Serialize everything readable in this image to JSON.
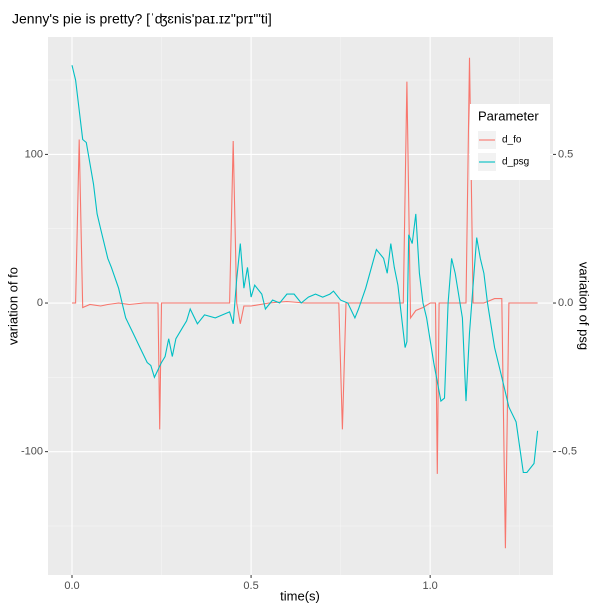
{
  "chart_data": {
    "type": "line",
    "title": "Jenny's pie is pretty? [ˈʤɛnis'paɪ.ɪz\"prɪ'\"ti]",
    "xlabel": "time(s)",
    "ylabel": "variation of fo",
    "y2label": "variation of psg",
    "legend_title": "Parameter",
    "legend": "right-inside-top",
    "grid": true,
    "xlim": [
      -0.067,
      1.343
    ],
    "xticks": [
      {
        "value": 0,
        "label": "0.0"
      },
      0.5,
      {
        "value": 1,
        "label": "1.0"
      }
    ],
    "xminorticks": [
      0.25,
      0.75,
      1.25
    ],
    "ylim": [
      -183,
      179
    ],
    "yticks": [
      -100,
      0,
      100
    ],
    "yminorticks": [
      -150,
      -50,
      50,
      150
    ],
    "y2lim": [
      -0.915,
      0.895
    ],
    "y2ticks": [
      -0.5,
      {
        "value": 0,
        "label": "0.0"
      },
      0.5
    ],
    "series": [
      {
        "name": "d_fo",
        "color": "#f8766d",
        "x": [
          0,
          0.01,
          0.02,
          0.03,
          0.05,
          0.08,
          0.1,
          0.13,
          0.16,
          0.2,
          0.24,
          0.245,
          0.25,
          0.3,
          0.35,
          0.4,
          0.44,
          0.45,
          0.46,
          0.47,
          0.48,
          0.5,
          0.55,
          0.6,
          0.65,
          0.7,
          0.745,
          0.755,
          0.765,
          0.8,
          0.85,
          0.9,
          0.925,
          0.935,
          0.945,
          0.96,
          0.98,
          1.0,
          1.015,
          1.02,
          1.025,
          1.05,
          1.08,
          1.1,
          1.11,
          1.12,
          1.15,
          1.18,
          1.2,
          1.21,
          1.22,
          1.25,
          1.3
        ],
        "values": [
          0,
          0,
          110,
          -3,
          -1,
          -2,
          -1,
          0,
          -1,
          0,
          0,
          -85,
          0,
          0,
          0,
          0,
          0,
          109,
          0,
          -14,
          -2,
          -2,
          0,
          1,
          0,
          0,
          0,
          -85,
          0,
          0,
          0,
          0,
          0,
          149,
          -10,
          -5,
          -3,
          0,
          0,
          -115,
          0,
          0,
          0,
          0,
          165,
          0,
          0,
          3,
          3,
          -165,
          0,
          0,
          0
        ]
      },
      {
        "name": "d_psg",
        "color": "#00bfc4",
        "axis": "y2",
        "x": [
          0,
          0.01,
          0.03,
          0.04,
          0.06,
          0.07,
          0.08,
          0.1,
          0.11,
          0.13,
          0.14,
          0.15,
          0.17,
          0.19,
          0.21,
          0.22,
          0.23,
          0.25,
          0.26,
          0.27,
          0.28,
          0.29,
          0.31,
          0.32,
          0.33,
          0.35,
          0.37,
          0.4,
          0.42,
          0.44,
          0.45,
          0.46,
          0.47,
          0.48,
          0.49,
          0.5,
          0.51,
          0.53,
          0.54,
          0.56,
          0.58,
          0.6,
          0.62,
          0.64,
          0.66,
          0.68,
          0.7,
          0.72,
          0.73,
          0.75,
          0.77,
          0.79,
          0.8,
          0.82,
          0.85,
          0.87,
          0.88,
          0.89,
          0.9,
          0.91,
          0.93,
          0.935,
          0.94,
          0.95,
          0.96,
          0.97,
          0.98,
          0.99,
          1.01,
          1.03,
          1.04,
          1.05,
          1.06,
          1.07,
          1.09,
          1.1,
          1.11,
          1.13,
          1.14,
          1.15,
          1.16,
          1.18,
          1.2,
          1.22,
          1.24,
          1.26,
          1.27,
          1.29,
          1.3
        ],
        "values": [
          0.8,
          0.75,
          0.55,
          0.54,
          0.4,
          0.3,
          0.25,
          0.15,
          0.12,
          0.05,
          0.0,
          -0.05,
          -0.1,
          -0.15,
          -0.2,
          -0.21,
          -0.25,
          -0.2,
          -0.18,
          -0.12,
          -0.18,
          -0.12,
          -0.08,
          -0.06,
          -0.02,
          -0.07,
          -0.04,
          -0.05,
          -0.04,
          -0.03,
          -0.07,
          0.08,
          0.2,
          0.05,
          0.12,
          0.02,
          0.06,
          0.03,
          -0.02,
          0.01,
          0.0,
          0.03,
          0.03,
          0.0,
          0.02,
          0.03,
          0.02,
          0.03,
          0.04,
          0.01,
          0.0,
          -0.05,
          -0.02,
          0.05,
          0.18,
          0.15,
          0.1,
          0.2,
          0.12,
          0.06,
          -0.15,
          -0.13,
          0.23,
          0.2,
          0.3,
          0.1,
          0.0,
          -0.05,
          -0.2,
          -0.33,
          -0.32,
          0.0,
          0.15,
          0.1,
          -0.05,
          -0.33,
          -0.1,
          0.22,
          0.15,
          0.1,
          0.0,
          -0.15,
          -0.25,
          -0.35,
          -0.4,
          -0.57,
          -0.57,
          -0.54,
          -0.43
        ]
      }
    ]
  }
}
